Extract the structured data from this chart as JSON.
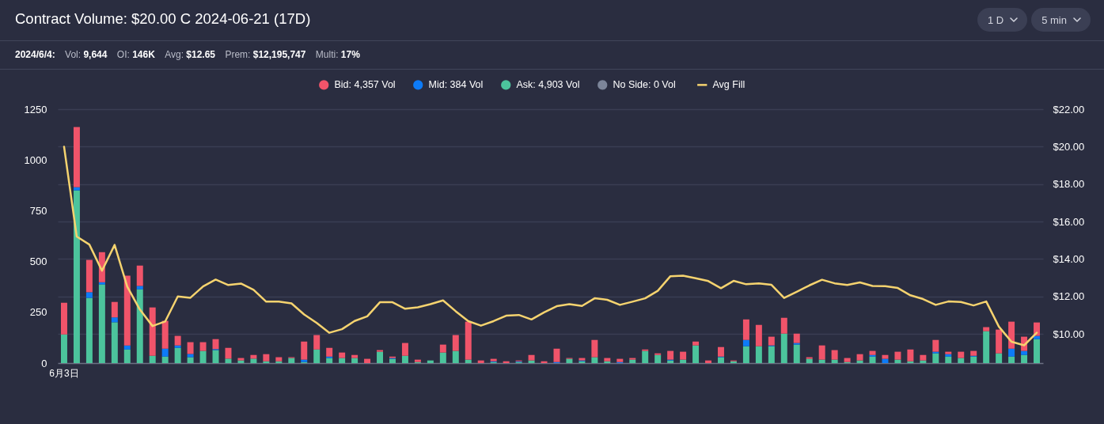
{
  "chart_data": {
    "type": "bar",
    "title": "Contract Volume: $20.00 C 2024-06-21 (17D)",
    "subtitle": "2024/6/4: Vol: 9,644 OI: 146K Avg: $12.65 Prem: $12,195,747 Multi: 17%",
    "annotations": [
      "1 D",
      "5 min"
    ],
    "categories": [
      "6月3日",
      null,
      null,
      null,
      null,
      null,
      null,
      null,
      null,
      null,
      null,
      null,
      null,
      null,
      null,
      null,
      null,
      null,
      null,
      null,
      null,
      null,
      null,
      null,
      null,
      null,
      null,
      null,
      null,
      null,
      null,
      null,
      null,
      null,
      null,
      null,
      null,
      null,
      null,
      null,
      null,
      null,
      null,
      null,
      null,
      null,
      null,
      null,
      null,
      null,
      null,
      null,
      null,
      null,
      null,
      null,
      null,
      null,
      null,
      null,
      null,
      null,
      null,
      null,
      null,
      null,
      null,
      null,
      null,
      null,
      null,
      null,
      null,
      null,
      null,
      null,
      null,
      null
    ],
    "stacked": true,
    "legend": "top",
    "grid": "y2",
    "ylim": [
      0,
      1250
    ],
    "yticks": [
      0,
      250,
      500,
      750,
      1000,
      1250
    ],
    "y2lim": [
      8.44,
      22
    ],
    "y2ticks": [
      {
        "value": 10,
        "label": "$10.00"
      },
      {
        "value": 12,
        "label": "$12.00"
      },
      {
        "value": 14,
        "label": "$14.00"
      },
      {
        "value": 16,
        "label": "$16.00"
      },
      {
        "value": 18,
        "label": "$18.00"
      },
      {
        "value": 20,
        "label": "$20.00"
      },
      {
        "value": 22,
        "label": "$22.00"
      }
    ],
    "series": [
      {
        "name": "No Side: 0 Vol",
        "color": "#7c8599",
        "values": [
          0,
          0,
          0,
          0,
          0,
          0,
          0,
          0,
          0,
          0,
          0,
          0,
          0,
          0,
          0,
          0,
          0,
          0,
          0,
          0,
          0,
          0,
          0,
          0,
          0,
          0,
          0,
          0,
          0,
          0,
          0,
          0,
          0,
          0,
          0,
          0,
          0,
          0,
          0,
          0,
          0,
          0,
          0,
          0,
          0,
          0,
          0,
          0,
          0,
          0,
          0,
          0,
          0,
          0,
          0,
          0,
          0,
          0,
          0,
          0,
          0,
          0,
          0,
          0,
          0,
          0,
          0,
          0,
          0,
          0,
          0,
          0,
          0,
          0,
          0,
          0,
          0,
          0
        ]
      },
      {
        "name": "Ask: 4,903 Vol",
        "color": "#4cc49c",
        "values": [
          141,
          850,
          321,
          387,
          201,
          67,
          363,
          36,
          32,
          75,
          29,
          60,
          64,
          22,
          13,
          22,
          9,
          9,
          25,
          5,
          67,
          25,
          25,
          25,
          0,
          56,
          21,
          36,
          5,
          13,
          52,
          60,
          17,
          0,
          5,
          0,
          5,
          13,
          0,
          0,
          21,
          9,
          29,
          9,
          0,
          17,
          60,
          40,
          13,
          17,
          87,
          0,
          29,
          9,
          83,
          83,
          83,
          145,
          91,
          21,
          17,
          17,
          5,
          13,
          32,
          0,
          17,
          9,
          13,
          48,
          32,
          25,
          32,
          157,
          48,
          32,
          40,
          118
        ]
      },
      {
        "name": "Mid: 384 Vol",
        "color": "#0d7bf7",
        "values": [
          0,
          16,
          28,
          11,
          24,
          20,
          17,
          0,
          39,
          12,
          16,
          0,
          5,
          0,
          0,
          0,
          0,
          0,
          0,
          12,
          0,
          7,
          0,
          0,
          0,
          0,
          4,
          0,
          0,
          0,
          0,
          0,
          0,
          0,
          4,
          0,
          4,
          0,
          0,
          5,
          0,
          4,
          0,
          0,
          5,
          0,
          0,
          0,
          4,
          0,
          0,
          0,
          3,
          0,
          31,
          0,
          4,
          0,
          8,
          0,
          0,
          0,
          0,
          0,
          8,
          21,
          0,
          0,
          0,
          8,
          12,
          0,
          4,
          0,
          0,
          39,
          20,
          16
        ]
      },
      {
        "name": "Bid: 4,357 Vol",
        "color": "#f0546a",
        "values": [
          156,
          296,
          159,
          148,
          76,
          343,
          100,
          238,
          137,
          47,
          58,
          43,
          49,
          53,
          12,
          18,
          35,
          20,
          4,
          89,
          71,
          43,
          27,
          15,
          21,
          8,
          7,
          63,
          12,
          0,
          39,
          78,
          187,
          13,
          12,
          9,
          4,
          27,
          9,
          66,
          4,
          12,
          85,
          16,
          16,
          8,
          7,
          8,
          43,
          39,
          19,
          13,
          47,
          4,
          101,
          105,
          43,
          78,
          46,
          8,
          70,
          47,
          20,
          31,
          20,
          19,
          39,
          58,
          27,
          58,
          12,
          31,
          24,
          20,
          117,
          133,
          70,
          66
        ]
      },
      {
        "name": "Avg Fill",
        "type": "line",
        "axis": "y2",
        "color": "#f5d36f",
        "values": [
          19.99,
          15.2,
          14.77,
          13.37,
          14.75,
          12.52,
          11.3,
          10.42,
          10.66,
          12.0,
          11.93,
          12.53,
          12.9,
          12.61,
          12.69,
          12.35,
          11.72,
          11.72,
          11.63,
          11.04,
          10.58,
          10.06,
          10.25,
          10.69,
          10.94,
          11.69,
          11.69,
          11.34,
          11.42,
          11.59,
          11.79,
          11.21,
          10.68,
          10.44,
          10.68,
          10.97,
          11.01,
          10.77,
          11.15,
          11.48,
          11.59,
          11.49,
          11.9,
          11.82,
          11.55,
          11.72,
          11.9,
          12.3,
          13.08,
          13.11,
          12.97,
          12.82,
          12.44,
          12.83,
          12.65,
          12.7,
          12.62,
          11.92,
          12.25,
          12.59,
          12.89,
          12.7,
          12.61,
          12.75,
          12.56,
          12.55,
          12.45,
          12.06,
          11.86,
          11.55,
          11.73,
          11.7,
          11.52,
          11.73,
          10.39,
          9.58,
          9.39,
          10.06
        ]
      }
    ]
  }
}
